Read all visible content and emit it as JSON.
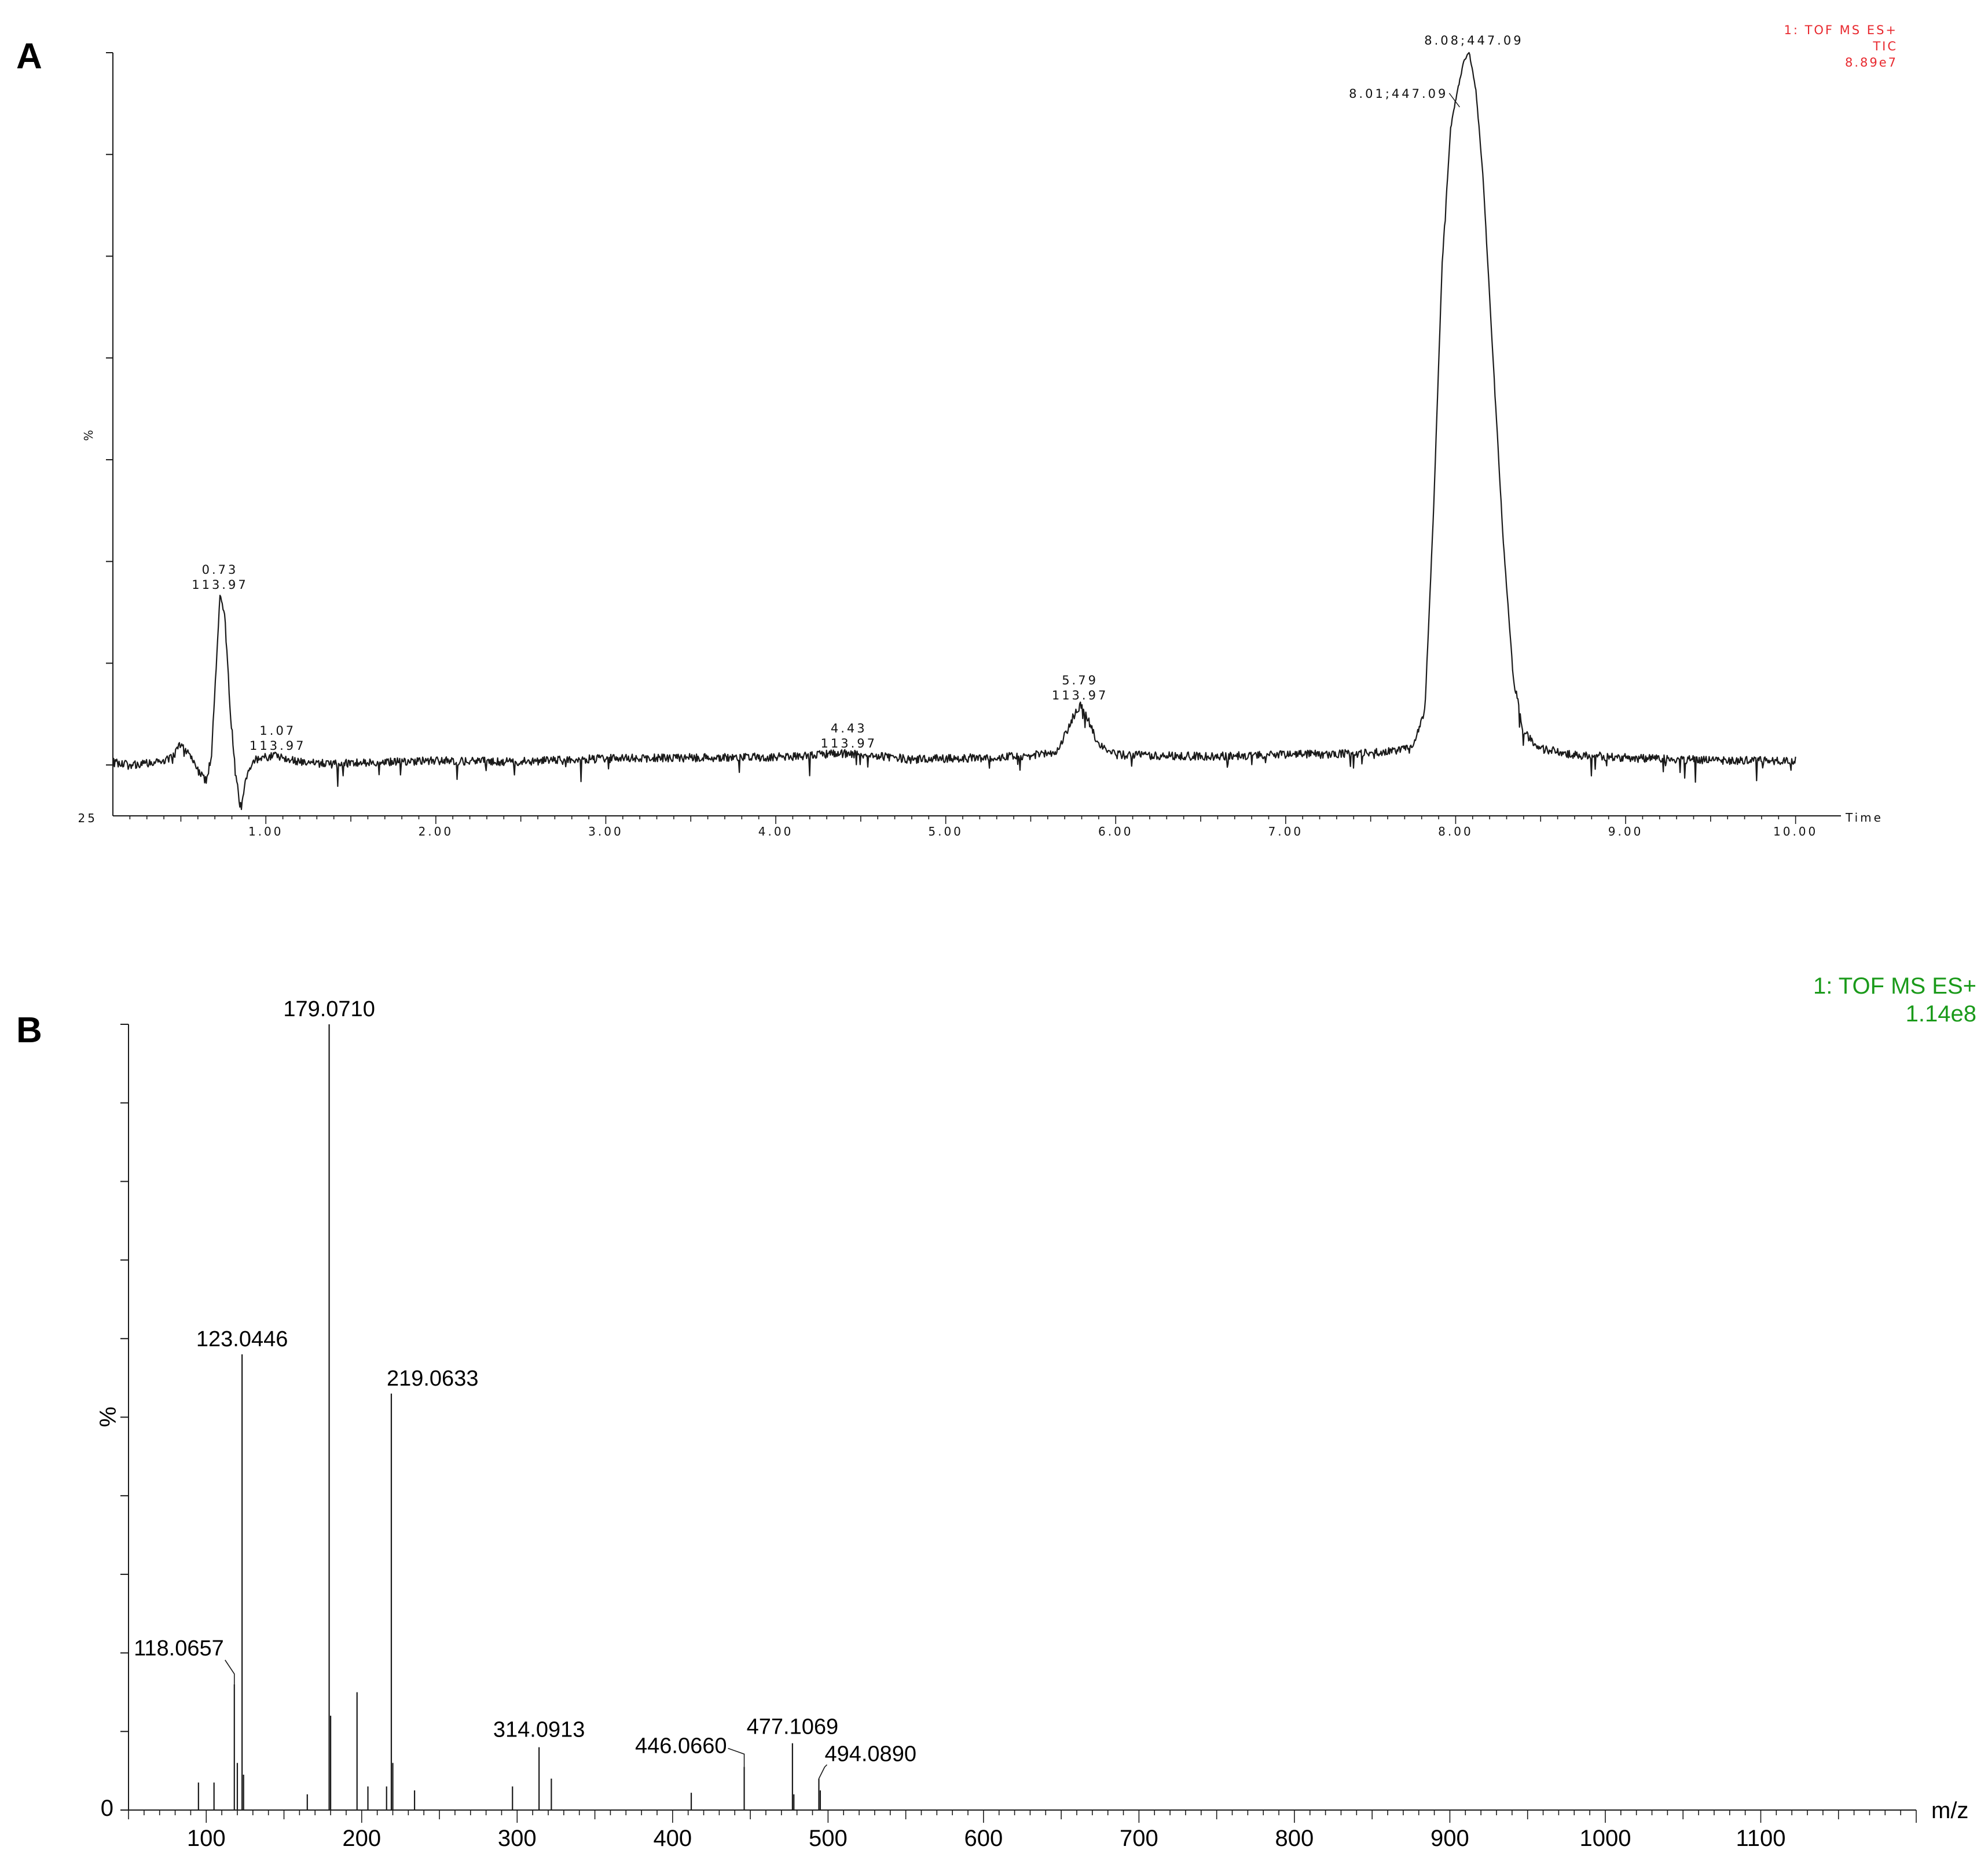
{
  "chart_data": [
    {
      "type": "line",
      "panel_label": "A",
      "xlabel": "Time",
      "ylabel": "%",
      "xlim": [
        0.1,
        10.1
      ],
      "ylim": [
        0,
        100
      ],
      "y_baseline_label": "25",
      "x_ticks": [
        "1.00",
        "2.00",
        "3.00",
        "4.00",
        "5.00",
        "6.00",
        "7.00",
        "8.00",
        "9.00",
        "10.00"
      ],
      "info": [
        "1: TOF MS ES+",
        "TIC",
        "8.89e7"
      ],
      "series": [
        {
          "points": [
            [
              0.1,
              7.0
            ],
            [
              0.2,
              6.6
            ],
            [
              0.3,
              6.9
            ],
            [
              0.4,
              7.3
            ],
            [
              0.45,
              7.6
            ],
            [
              0.5,
              9.5
            ],
            [
              0.55,
              8.0
            ],
            [
              0.6,
              6.0
            ],
            [
              0.65,
              4.5
            ],
            [
              0.68,
              8.0
            ],
            [
              0.7,
              16.0
            ],
            [
              0.73,
              29.0
            ],
            [
              0.76,
              26.0
            ],
            [
              0.79,
              14.0
            ],
            [
              0.82,
              6.0
            ],
            [
              0.85,
              1.2
            ],
            [
              0.88,
              4.5
            ],
            [
              0.92,
              7.3
            ],
            [
              0.97,
              7.6
            ],
            [
              1.02,
              7.8
            ],
            [
              1.07,
              7.9
            ],
            [
              1.15,
              7.4
            ],
            [
              1.25,
              6.9
            ],
            [
              1.4,
              6.8
            ],
            [
              1.6,
              7.0
            ],
            [
              2.0,
              7.2
            ],
            [
              2.5,
              7.1
            ],
            [
              3.0,
              7.5
            ],
            [
              3.5,
              7.6
            ],
            [
              4.0,
              7.7
            ],
            [
              4.43,
              8.2
            ],
            [
              4.8,
              7.4
            ],
            [
              5.2,
              7.6
            ],
            [
              5.5,
              7.9
            ],
            [
              5.65,
              8.4
            ],
            [
              5.7,
              10.5
            ],
            [
              5.75,
              13.0
            ],
            [
              5.79,
              14.5
            ],
            [
              5.84,
              12.5
            ],
            [
              5.9,
              9.2
            ],
            [
              6.0,
              8.0
            ],
            [
              6.5,
              7.8
            ],
            [
              7.0,
              8.0
            ],
            [
              7.5,
              8.2
            ],
            [
              7.75,
              8.8
            ],
            [
              7.82,
              14.0
            ],
            [
              7.87,
              40.0
            ],
            [
              7.92,
              72.0
            ],
            [
              7.97,
              90.0
            ],
            [
              8.01,
              95.0
            ],
            [
              8.05,
              99.0
            ],
            [
              8.08,
              100.0
            ],
            [
              8.12,
              95.0
            ],
            [
              8.16,
              84.0
            ],
            [
              8.22,
              60.0
            ],
            [
              8.28,
              36.0
            ],
            [
              8.34,
              18.0
            ],
            [
              8.4,
              11.0
            ],
            [
              8.5,
              8.8
            ],
            [
              8.7,
              8.0
            ],
            [
              9.0,
              7.6
            ],
            [
              9.5,
              7.3
            ],
            [
              10.0,
              7.2
            ]
          ]
        }
      ],
      "annotations": [
        {
          "x": 0.73,
          "y": 29.0,
          "lines": [
            "0.73",
            "113.97"
          ]
        },
        {
          "x": 1.07,
          "y": 7.9,
          "lines": [
            "1.07",
            "113.97"
          ]
        },
        {
          "x": 4.43,
          "y": 8.2,
          "lines": [
            "4.43",
            "113.97"
          ]
        },
        {
          "x": 5.79,
          "y": 14.5,
          "lines": [
            "5.79",
            "113.97"
          ]
        },
        {
          "x": 8.08,
          "y": 100.0,
          "lines": [
            "8.08;447.09"
          ]
        },
        {
          "x": 8.01,
          "y": 95.0,
          "lines": [
            "8.01;447.09"
          ]
        }
      ],
      "colors": {
        "line": "#1a1a1a",
        "info": "#e8282e"
      }
    },
    {
      "type": "bar",
      "panel_label": "B",
      "xlabel": "m/z",
      "ylabel": "%",
      "xlim": [
        50,
        1200
      ],
      "ylim": [
        0,
        100
      ],
      "y_tick_labels": [
        "0"
      ],
      "x_ticks": [
        100,
        200,
        300,
        400,
        500,
        600,
        700,
        800,
        900,
        1000,
        1100
      ],
      "info": [
        "1: TOF MS ES+",
        "1.14e8"
      ],
      "peaks": [
        [
          95,
          3.5
        ],
        [
          105,
          3.5
        ],
        [
          118.0657,
          16
        ],
        [
          120,
          6
        ],
        [
          123.0446,
          58
        ],
        [
          124,
          4.5
        ],
        [
          165,
          2
        ],
        [
          179.071,
          100
        ],
        [
          180,
          12
        ],
        [
          197,
          15
        ],
        [
          204,
          3
        ],
        [
          216,
          3
        ],
        [
          219.0633,
          53
        ],
        [
          220,
          6
        ],
        [
          234,
          2.5
        ],
        [
          297,
          3
        ],
        [
          314.0913,
          8
        ],
        [
          322,
          4
        ],
        [
          412,
          2.2
        ],
        [
          446.066,
          5.5
        ],
        [
          477.1069,
          8.5
        ],
        [
          478,
          2
        ],
        [
          494.089,
          4
        ],
        [
          495,
          2.5
        ]
      ],
      "labeled_peaks": [
        {
          "x": 179.071,
          "label": "179.0710"
        },
        {
          "x": 123.0446,
          "label": "123.0446"
        },
        {
          "x": 219.0633,
          "label": "219.0633"
        },
        {
          "x": 118.0657,
          "label": "118.0657"
        },
        {
          "x": 314.0913,
          "label": "314.0913"
        },
        {
          "x": 446.066,
          "label": "446.0660"
        },
        {
          "x": 477.1069,
          "label": "477.1069"
        },
        {
          "x": 494.089,
          "label": "494.0890"
        }
      ],
      "colors": {
        "line": "#1a1a1a",
        "info": "#1a9a1a"
      }
    }
  ]
}
